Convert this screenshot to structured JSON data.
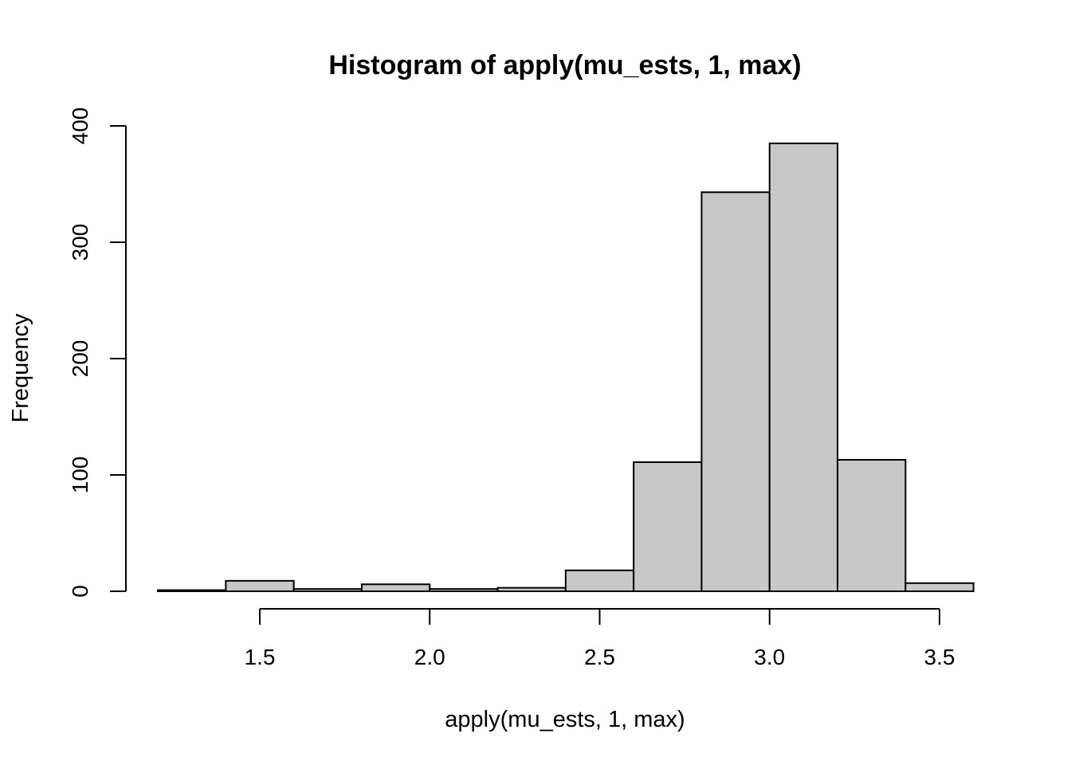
{
  "chart_data": {
    "type": "bar",
    "title": "Histogram of apply(mu_ests, 1, max)",
    "xlabel": "apply(mu_ests, 1, max)",
    "ylabel": "Frequency",
    "bin_edges": [
      1.2,
      1.4,
      1.6,
      1.8,
      2.0,
      2.2,
      2.4,
      2.6,
      2.8,
      3.0,
      3.2,
      3.4,
      3.6
    ],
    "values": [
      1,
      9,
      2,
      6,
      2,
      3,
      18,
      111,
      343,
      385,
      113,
      7
    ],
    "x_ticks": [
      1.5,
      2.0,
      2.5,
      3.0,
      3.5
    ],
    "x_tick_labels": [
      "1.5",
      "2.0",
      "2.5",
      "3.0",
      "3.5"
    ],
    "y_ticks": [
      0,
      100,
      200,
      300,
      400
    ],
    "y_tick_labels": [
      "0",
      "100",
      "200",
      "300",
      "400"
    ],
    "xlim": [
      1.2,
      3.6
    ],
    "ylim": [
      0,
      400
    ],
    "bar_color": "#c8c8c8",
    "grid": false,
    "legend": "none"
  }
}
